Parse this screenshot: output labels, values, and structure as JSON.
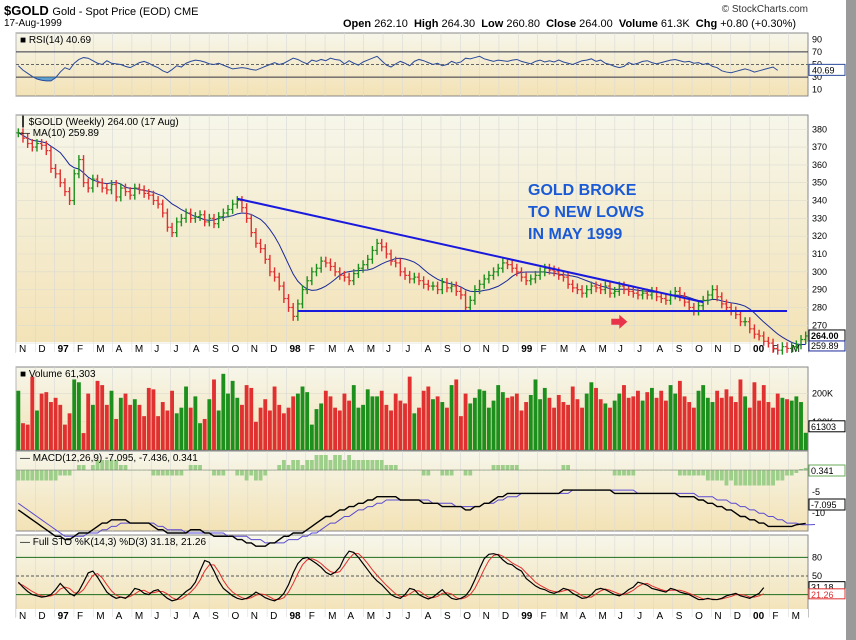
{
  "header": {
    "symbol": "$GOLD",
    "name": "Gold - Spot Price (EOD)",
    "exchange": "CME",
    "date": "17-Aug-1999",
    "copyright": "© StockCharts.com",
    "open_label": "Open",
    "open": "262.10",
    "high_label": "High",
    "high": "264.30",
    "low_label": "Low",
    "low": "260.80",
    "close_label": "Close",
    "close": "264.00",
    "volume_label": "Volume",
    "volume": "61.3K",
    "chg_label": "Chg",
    "chg": "+0.80 (+0.30%)"
  },
  "colors": {
    "up": "#1d8f1d",
    "down": "#e03030",
    "ma": "#1a2a9a",
    "trend": "#1a1add",
    "annotation": "#1a5ad6",
    "arrow": "#e8334a",
    "panel_bg_top": "#f6f6ea",
    "panel_bg_bottom": "#f3e3b8"
  },
  "chart_data": [
    {
      "type": "line",
      "panel": "rsi",
      "title": "RSI(14) 40.69",
      "y_ticks": [
        "90",
        "70",
        "50",
        "30",
        "10"
      ],
      "current": "40.69",
      "levels": [
        70,
        50,
        30
      ],
      "ylim": [
        0,
        100
      ],
      "values": [
        48,
        41,
        36,
        31,
        27,
        25,
        24,
        24,
        29,
        38,
        45,
        42,
        52,
        58,
        61,
        60,
        56,
        52,
        50,
        56,
        52,
        51,
        50,
        47,
        45,
        49,
        53,
        55,
        52,
        48,
        45,
        40,
        37,
        42,
        48,
        46,
        52,
        55,
        57,
        56,
        54,
        51,
        50,
        52,
        49,
        46,
        43,
        44,
        45,
        44,
        42,
        41,
        44,
        47,
        50,
        53,
        50,
        52,
        56,
        60,
        58,
        54,
        51,
        57,
        55,
        58,
        56,
        60,
        58,
        57,
        51,
        56,
        52,
        49,
        54,
        57,
        60,
        63,
        56,
        49,
        46,
        51,
        55,
        52,
        48,
        55,
        58,
        56,
        53,
        50,
        52,
        48,
        50,
        55,
        52,
        54,
        60,
        59,
        61,
        63,
        59,
        57,
        55,
        57,
        56,
        55,
        57,
        58,
        55,
        53,
        51,
        55,
        57,
        54,
        56,
        54,
        57,
        54,
        52,
        50,
        53,
        56,
        57,
        59,
        55,
        57,
        52,
        50,
        47,
        45,
        47,
        53,
        50,
        52,
        55,
        56,
        53,
        51,
        53,
        55,
        57,
        58,
        56,
        54,
        55,
        52,
        53,
        50,
        52,
        47,
        45,
        40,
        38,
        37,
        39,
        41,
        43,
        41,
        38,
        40,
        42,
        44,
        46,
        40.69
      ]
    },
    {
      "type": "bar",
      "panel": "price",
      "title": "$GOLD (Weekly) 264.00 (17 Aug)",
      "ma_label": "MA(10) 259.89",
      "y_ticks": [
        "380",
        "370",
        "360",
        "350",
        "340",
        "330",
        "320",
        "310",
        "300",
        "290",
        "280",
        "270",
        "260"
      ],
      "ylim": [
        255,
        388
      ],
      "current_price": "264.00",
      "current_ma": "259.89",
      "annotation": [
        "GOLD BROKE",
        "TO NEW LOWS",
        "IN MAY 1999"
      ],
      "close": [
        378,
        375,
        372,
        370,
        372,
        371,
        368,
        358,
        355,
        350,
        345,
        340,
        355,
        363,
        350,
        347,
        352,
        350,
        347,
        346,
        349,
        342,
        347,
        345,
        343,
        347,
        346,
        344,
        343,
        340,
        338,
        333,
        325,
        322,
        328,
        330,
        333,
        330,
        331,
        332,
        328,
        330,
        327,
        331,
        333,
        335,
        338,
        340,
        336,
        330,
        322,
        316,
        313,
        307,
        300,
        297,
        292,
        285,
        280,
        275,
        282,
        290,
        295,
        300,
        302,
        306,
        305,
        303,
        300,
        298,
        297,
        295,
        299,
        302,
        304,
        307,
        312,
        316,
        314,
        310,
        306,
        305,
        300,
        298,
        296,
        297,
        295,
        293,
        292,
        292,
        290,
        294,
        291,
        292,
        289,
        287,
        280,
        284,
        290,
        293,
        296,
        298,
        300,
        302,
        305,
        304,
        302,
        300,
        297,
        295,
        296,
        298,
        300,
        302,
        301,
        300,
        298,
        297,
        293,
        291,
        290,
        288,
        290,
        292,
        291,
        290,
        292,
        288,
        289,
        292,
        290,
        289,
        288,
        287,
        288,
        287,
        289,
        286,
        285,
        284,
        287,
        289,
        286,
        283,
        280,
        278,
        281,
        284,
        287,
        290,
        286,
        282,
        280,
        278,
        276,
        272,
        272,
        268,
        265,
        264,
        261,
        260,
        257,
        256,
        258,
        257,
        258,
        259,
        262,
        264
      ]
    },
    {
      "type": "bar",
      "panel": "volume",
      "title": "Volume 61,303",
      "y_ticks": [
        "200K",
        "100K"
      ],
      "current": "61303",
      "values": [
        210,
        95,
        90,
        260,
        140,
        200,
        205,
        170,
        185,
        160,
        90,
        130,
        250,
        240,
        60,
        200,
        160,
        245,
        230,
        160,
        210,
        110,
        185,
        200,
        160,
        180,
        160,
        120,
        220,
        215,
        120,
        170,
        140,
        210,
        130,
        150,
        225,
        150,
        190,
        95,
        110,
        180,
        250,
        140,
        270,
        200,
        245,
        185,
        160,
        230,
        220,
        100,
        150,
        180,
        140,
        225,
        160,
        130,
        150,
        190,
        200,
        225,
        205,
        90,
        145,
        165,
        210,
        190,
        150,
        140,
        200,
        175,
        230,
        150,
        160,
        215,
        190,
        190,
        210,
        160,
        140,
        200,
        175,
        165,
        260,
        130,
        150,
        210,
        225,
        180,
        190,
        170,
        150,
        230,
        250,
        120,
        200,
        165,
        185,
        215,
        210,
        150,
        175,
        230,
        205,
        185,
        190,
        200,
        140,
        170,
        195,
        250,
        180,
        220,
        185,
        150,
        195,
        170,
        160,
        225,
        180,
        150,
        200,
        240,
        220,
        180,
        165,
        150,
        175,
        200,
        230,
        185,
        190,
        210,
        175,
        205,
        220,
        185,
        210,
        175,
        230,
        200,
        245,
        190,
        170,
        150,
        210,
        230,
        185,
        170,
        210,
        185,
        215,
        190,
        170,
        250,
        190,
        150,
        240,
        175,
        230,
        170,
        150,
        200,
        185,
        180,
        175,
        190,
        170,
        61
      ]
    },
    {
      "type": "line",
      "panel": "macd",
      "title": "MACD(12,26,9) -7.095, -7.436, 0.341",
      "y_ticks": [
        "-5",
        "-10"
      ],
      "current_hist": "0.341",
      "current_macd": "-7.095",
      "macd": [
        -3,
        -4,
        -5,
        -6,
        -7,
        -8,
        -9,
        -10,
        -11,
        -11,
        -12,
        -12,
        -11,
        -10,
        -10,
        -10,
        -9,
        -8,
        -7,
        -7,
        -6,
        -6,
        -6,
        -6,
        -7,
        -7,
        -7,
        -7,
        -7,
        -8,
        -9,
        -9,
        -10,
        -10,
        -10,
        -10,
        -10,
        -9,
        -9,
        -9,
        -10,
        -10,
        -11,
        -11,
        -11,
        -11,
        -11,
        -12,
        -12,
        -13,
        -13,
        -14,
        -14,
        -14,
        -13,
        -13,
        -12,
        -11,
        -11,
        -10,
        -10,
        -10,
        -9,
        -8,
        -7,
        -6,
        -5,
        -5,
        -4,
        -3,
        -3,
        -2,
        -2,
        -1,
        -1,
        0,
        0,
        1,
        1,
        1,
        1,
        1,
        0,
        0,
        0,
        0,
        0,
        -1,
        -1,
        -1,
        -1,
        -2,
        -2,
        -2,
        -2,
        -2,
        -3,
        -3,
        -2,
        -2,
        -1,
        -1,
        0,
        1,
        1,
        2,
        2,
        2,
        2,
        2,
        2,
        2,
        2,
        2,
        2,
        2,
        2,
        3,
        3,
        3,
        3,
        3,
        3,
        3,
        3,
        3,
        3,
        3,
        2,
        2,
        2,
        2,
        2,
        2,
        2,
        2,
        2,
        2,
        2,
        2,
        2,
        2,
        1,
        1,
        1,
        1,
        0,
        0,
        -1,
        -1,
        -2,
        -2,
        -3,
        -3,
        -4,
        -5,
        -5,
        -6,
        -6,
        -7,
        -7,
        -8,
        -8,
        -8,
        -8,
        -8,
        -8,
        -7.5,
        -7.3,
        -7.095
      ],
      "signal": [
        -1,
        -2,
        -3,
        -4,
        -5,
        -6,
        -7,
        -8,
        -9,
        -10,
        -11,
        -11,
        -11,
        -11,
        -11,
        -10,
        -10,
        -10,
        -9,
        -9,
        -8,
        -8,
        -7,
        -7,
        -7,
        -7,
        -7,
        -7,
        -7,
        -7,
        -8,
        -8,
        -9,
        -9,
        -9,
        -9,
        -10,
        -10,
        -10,
        -10,
        -10,
        -10,
        -10,
        -10,
        -10,
        -11,
        -11,
        -11,
        -11,
        -11,
        -12,
        -12,
        -12,
        -13,
        -13,
        -13,
        -13,
        -13,
        -12,
        -12,
        -12,
        -11,
        -11,
        -10,
        -10,
        -9,
        -8,
        -7,
        -7,
        -6,
        -5,
        -5,
        -4,
        -3,
        -3,
        -2,
        -2,
        -1,
        -1,
        0,
        0,
        0,
        0,
        0,
        0,
        0,
        0,
        0,
        0,
        -1,
        -1,
        -1,
        -1,
        -1,
        -2,
        -2,
        -2,
        -2,
        -2,
        -2,
        -1,
        -1,
        -1,
        0,
        0,
        1,
        1,
        1,
        2,
        2,
        2,
        2,
        2,
        2,
        2,
        2,
        2,
        2,
        2,
        3,
        3,
        3,
        3,
        3,
        3,
        3,
        3,
        3,
        3,
        3,
        3,
        3,
        3,
        2,
        2,
        2,
        2,
        2,
        2,
        2,
        2,
        2,
        2,
        2,
        2,
        2,
        1,
        1,
        1,
        1,
        0,
        0,
        0,
        -1,
        -1,
        -2,
        -2,
        -3,
        -3,
        -4,
        -4,
        -5,
        -5,
        -6,
        -6,
        -7,
        -7,
        -7,
        -7.5,
        -7.5,
        -7.5,
        -7.436
      ]
    },
    {
      "type": "line",
      "panel": "sto",
      "title": "Full STO %K(14,3) %D(3) 31.18, 21.26",
      "y_ticks": [
        "80",
        "50",
        "20"
      ],
      "levels": [
        80,
        50,
        20
      ],
      "current_k": "31.18",
      "current_d": "21.26",
      "k": [
        40,
        32,
        25,
        20,
        18,
        16,
        17,
        20,
        28,
        38,
        30,
        22,
        18,
        26,
        40,
        55,
        58,
        48,
        36,
        24,
        18,
        14,
        16,
        14,
        20,
        30,
        28,
        22,
        20,
        26,
        28,
        20,
        14,
        10,
        12,
        18,
        25,
        30,
        40,
        58,
        75,
        72,
        58,
        42,
        30,
        24,
        18,
        14,
        12,
        14,
        18,
        24,
        20,
        15,
        12,
        10,
        14,
        22,
        36,
        55,
        70,
        78,
        80,
        75,
        70,
        64,
        56,
        52,
        56,
        64,
        80,
        90,
        88,
        80,
        70,
        60,
        50,
        42,
        36,
        28,
        20,
        16,
        14,
        20,
        30,
        28,
        20,
        16,
        13,
        16,
        22,
        28,
        20,
        14,
        12,
        14,
        18,
        28,
        44,
        62,
        78,
        85,
        86,
        84,
        76,
        70,
        68,
        62,
        58,
        46,
        40,
        34,
        30,
        28,
        24,
        22,
        25,
        30,
        28,
        22,
        18,
        14,
        15,
        20,
        28,
        30,
        28,
        24,
        20,
        18,
        22,
        28,
        32,
        40,
        38,
        35,
        30,
        28,
        26,
        24,
        30,
        28,
        24,
        22,
        20,
        16,
        12,
        12,
        14,
        12,
        12,
        14,
        18,
        20,
        22,
        18,
        16,
        14,
        18,
        22,
        31.18
      ],
      "d": [
        38,
        35,
        30,
        25,
        21,
        18,
        17,
        18,
        21,
        29,
        32,
        30,
        23,
        22,
        28,
        40,
        51,
        54,
        47,
        36,
        26,
        19,
        16,
        15,
        17,
        21,
        26,
        27,
        23,
        23,
        25,
        25,
        21,
        15,
        12,
        13,
        18,
        24,
        32,
        43,
        58,
        68,
        68,
        57,
        43,
        32,
        24,
        19,
        15,
        13,
        15,
        19,
        21,
        20,
        16,
        12,
        12,
        15,
        24,
        38,
        54,
        68,
        76,
        78,
        75,
        70,
        63,
        57,
        55,
        57,
        67,
        78,
        86,
        86,
        79,
        70,
        60,
        51,
        43,
        35,
        28,
        21,
        17,
        17,
        21,
        26,
        26,
        21,
        16,
        15,
        17,
        22,
        23,
        21,
        15,
        13,
        15,
        20,
        30,
        45,
        61,
        75,
        83,
        85,
        82,
        77,
        71,
        67,
        63,
        55,
        48,
        40,
        35,
        31,
        27,
        25,
        24,
        26,
        28,
        27,
        23,
        18,
        16,
        16,
        21,
        26,
        29,
        27,
        24,
        21,
        20,
        23,
        27,
        33,
        37,
        38,
        34,
        31,
        28,
        26,
        27,
        27,
        27,
        25,
        22,
        19,
        16,
        13,
        13,
        13,
        12,
        13,
        15,
        17,
        20,
        20,
        19,
        16,
        16,
        18,
        21.26
      ]
    }
  ],
  "x_axis": {
    "labels": [
      "N",
      "D",
      "97",
      "F",
      "M",
      "A",
      "M",
      "J",
      "J",
      "A",
      "S",
      "O",
      "N",
      "D",
      "98",
      "F",
      "M",
      "A",
      "M",
      "J",
      "J",
      "A",
      "S",
      "O",
      "N",
      "D",
      "99",
      "F",
      "M",
      "A",
      "M",
      "J",
      "J",
      "A",
      "S",
      "O",
      "N",
      "D",
      "00",
      "F",
      "M"
    ]
  }
}
